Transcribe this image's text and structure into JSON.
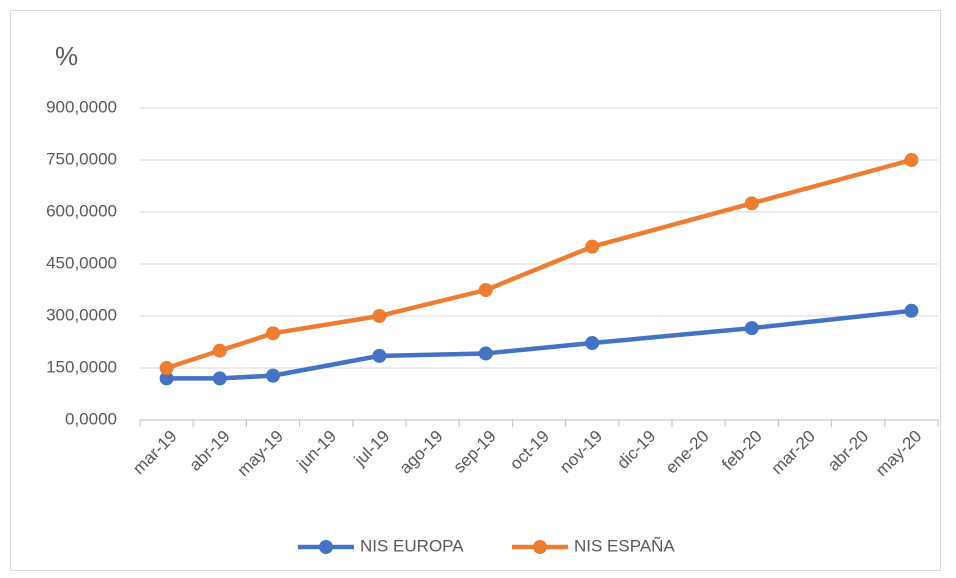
{
  "chart_data": {
    "type": "line",
    "y_label": "%",
    "categories": [
      "mar-19",
      "abr-19",
      "may-19",
      "jun-19",
      "jul-19",
      "ago-19",
      "sep-19",
      "oct-19",
      "nov-19",
      "dic-19",
      "ene-20",
      "feb-20",
      "mar-20",
      "abr-20",
      "may-20"
    ],
    "x": [
      "mar-19",
      "abr-19",
      "may-19",
      "jul-19",
      "sep-19",
      "nov-19",
      "feb-20",
      "may-20"
    ],
    "series": [
      {
        "name": "NIS EUROPA",
        "color": "#4472c4",
        "values": [
          120,
          120,
          128,
          185,
          192,
          222,
          265,
          315
        ]
      },
      {
        "name": "NIS ESPAÑA",
        "color": "#ed7d31",
        "values": [
          150,
          200,
          250,
          300,
          375,
          500,
          625,
          750
        ]
      }
    ],
    "ylim": [
      0,
      900
    ],
    "yticks": [
      {
        "value": 0,
        "label": "0,0000"
      },
      {
        "value": 150,
        "label": "150,0000"
      },
      {
        "value": 300,
        "label": "300,0000"
      },
      {
        "value": 450,
        "label": "450,0000"
      },
      {
        "value": 600,
        "label": "600,0000"
      },
      {
        "value": 750,
        "label": "750,0000"
      },
      {
        "value": 900,
        "label": "900,0000"
      }
    ],
    "grid": true,
    "legend": "bottom"
  }
}
